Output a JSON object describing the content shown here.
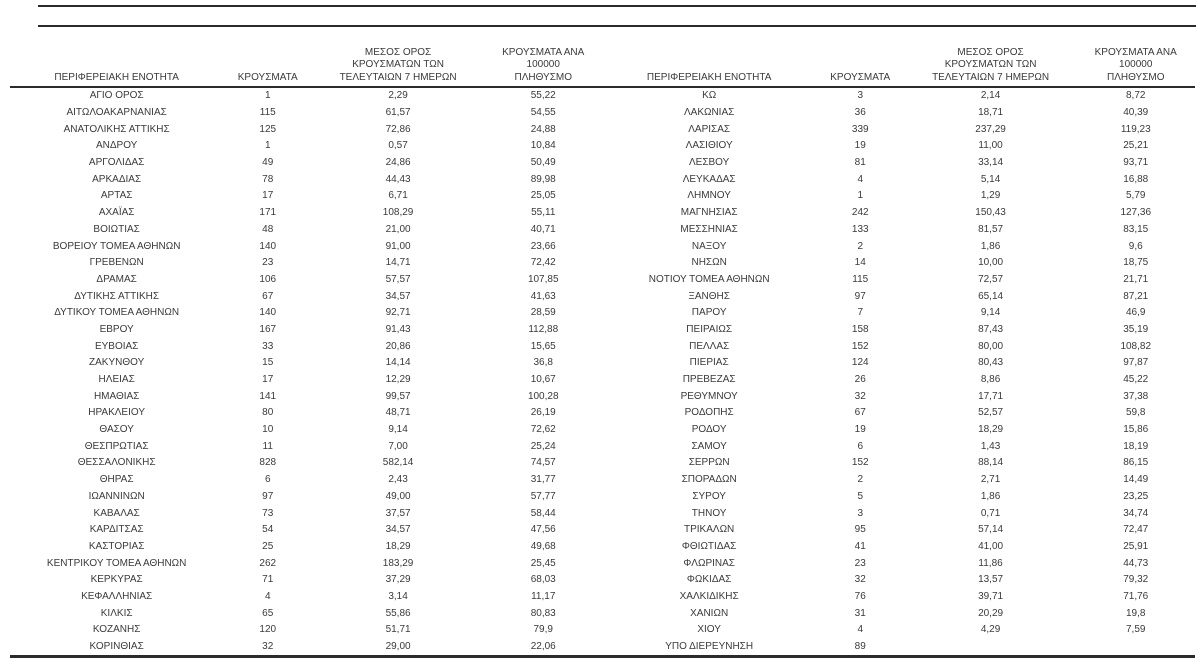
{
  "page": {
    "background_color": "#ffffff",
    "text_color": "#3a3a3a",
    "rule_color": "#2b2b2b",
    "language": "el"
  },
  "columns": {
    "region": "ΠΕΡΙΦΕΡΕΙΑΚΗ ΕΝΟΤΗΤΑ",
    "cases": "ΚΡΟΥΣΜΑΤΑ",
    "avg7": "ΜΕΣΟΣ ΟΡΟΣ\nΚΡΟΥΣΜΑΤΩΝ ΤΩΝ\nΤΕΛΕΥΤΑΙΩΝ 7 ΗΜΕΡΩΝ",
    "per100k": "ΚΡΟΥΣΜΑΤΑ ΑΝΑ 100000\nΠΛΗΘΥΣΜΟ"
  },
  "tables": [
    {
      "rows": [
        [
          "ΑΓΙΟ ΟΡΟΣ",
          "1",
          "2,29",
          "55,22"
        ],
        [
          "ΑΙΤΩΛΟΑΚΑΡΝΑΝΙΑΣ",
          "115",
          "61,57",
          "54,55"
        ],
        [
          "ΑΝΑΤΟΛΙΚΗΣ ΑΤΤΙΚΗΣ",
          "125",
          "72,86",
          "24,88"
        ],
        [
          "ΑΝΔΡΟΥ",
          "1",
          "0,57",
          "10,84"
        ],
        [
          "ΑΡΓΟΛΙΔΑΣ",
          "49",
          "24,86",
          "50,49"
        ],
        [
          "ΑΡΚΑΔΙΑΣ",
          "78",
          "44,43",
          "89,98"
        ],
        [
          "ΑΡΤΑΣ",
          "17",
          "6,71",
          "25,05"
        ],
        [
          "ΑΧΑΪΑΣ",
          "171",
          "108,29",
          "55,11"
        ],
        [
          "ΒΟΙΩΤΙΑΣ",
          "48",
          "21,00",
          "40,71"
        ],
        [
          "ΒΟΡΕΙΟΥ ΤΟΜΕΑ ΑΘΗΝΩΝ",
          "140",
          "91,00",
          "23,66"
        ],
        [
          "ΓΡΕΒΕΝΩΝ",
          "23",
          "14,71",
          "72,42"
        ],
        [
          "ΔΡΑΜΑΣ",
          "106",
          "57,57",
          "107,85"
        ],
        [
          "ΔΥΤΙΚΗΣ ΑΤΤΙΚΗΣ",
          "67",
          "34,57",
          "41,63"
        ],
        [
          "ΔΥΤΙΚΟΥ ΤΟΜΕΑ ΑΘΗΝΩΝ",
          "140",
          "92,71",
          "28,59"
        ],
        [
          "ΕΒΡΟΥ",
          "167",
          "91,43",
          "112,88"
        ],
        [
          "ΕΥΒΟΙΑΣ",
          "33",
          "20,86",
          "15,65"
        ],
        [
          "ΖΑΚΥΝΘΟΥ",
          "15",
          "14,14",
          "36,8"
        ],
        [
          "ΗΛΕΙΑΣ",
          "17",
          "12,29",
          "10,67"
        ],
        [
          "ΗΜΑΘΙΑΣ",
          "141",
          "99,57",
          "100,28"
        ],
        [
          "ΗΡΑΚΛΕΙΟΥ",
          "80",
          "48,71",
          "26,19"
        ],
        [
          "ΘΑΣΟΥ",
          "10",
          "9,14",
          "72,62"
        ],
        [
          "ΘΕΣΠΡΩΤΙΑΣ",
          "11",
          "7,00",
          "25,24"
        ],
        [
          "ΘΕΣΣΑΛΟΝΙΚΗΣ",
          "828",
          "582,14",
          "74,57"
        ],
        [
          "ΘΗΡΑΣ",
          "6",
          "2,43",
          "31,77"
        ],
        [
          "ΙΩΑΝΝΙΝΩΝ",
          "97",
          "49,00",
          "57,77"
        ],
        [
          "ΚΑΒΑΛΑΣ",
          "73",
          "37,57",
          "58,44"
        ],
        [
          "ΚΑΡΔΙΤΣΑΣ",
          "54",
          "34,57",
          "47,56"
        ],
        [
          "ΚΑΣΤΟΡΙΑΣ",
          "25",
          "18,29",
          "49,68"
        ],
        [
          "ΚΕΝΤΡΙΚΟΥ ΤΟΜΕΑ ΑΘΗΝΩΝ",
          "262",
          "183,29",
          "25,45"
        ],
        [
          "ΚΕΡΚΥΡΑΣ",
          "71",
          "37,29",
          "68,03"
        ],
        [
          "ΚΕΦΑΛΛΗΝΙΑΣ",
          "4",
          "3,14",
          "11,17"
        ],
        [
          "ΚΙΛΚΙΣ",
          "65",
          "55,86",
          "80,83"
        ],
        [
          "ΚΟΖΑΝΗΣ",
          "120",
          "51,71",
          "79,9"
        ],
        [
          "ΚΟΡΙΝΘΙΑΣ",
          "32",
          "29,00",
          "22,06"
        ]
      ]
    },
    {
      "rows": [
        [
          "ΚΩ",
          "3",
          "2,14",
          "8,72"
        ],
        [
          "ΛΑΚΩΝΙΑΣ",
          "36",
          "18,71",
          "40,39"
        ],
        [
          "ΛΑΡΙΣΑΣ",
          "339",
          "237,29",
          "119,23"
        ],
        [
          "ΛΑΣΙΘΙΟΥ",
          "19",
          "11,00",
          "25,21"
        ],
        [
          "ΛΕΣΒΟΥ",
          "81",
          "33,14",
          "93,71"
        ],
        [
          "ΛΕΥΚΑΔΑΣ",
          "4",
          "5,14",
          "16,88"
        ],
        [
          "ΛΗΜΝΟΥ",
          "1",
          "1,29",
          "5,79"
        ],
        [
          "ΜΑΓΝΗΣΙΑΣ",
          "242",
          "150,43",
          "127,36"
        ],
        [
          "ΜΕΣΣΗΝΙΑΣ",
          "133",
          "81,57",
          "83,15"
        ],
        [
          "ΝΑΞΟΥ",
          "2",
          "1,86",
          "9,6"
        ],
        [
          "ΝΗΣΩΝ",
          "14",
          "10,00",
          "18,75"
        ],
        [
          "ΝΟΤΙΟΥ ΤΟΜΕΑ ΑΘΗΝΩΝ",
          "115",
          "72,57",
          "21,71"
        ],
        [
          "ΞΑΝΘΗΣ",
          "97",
          "65,14",
          "87,21"
        ],
        [
          "ΠΑΡΟΥ",
          "7",
          "9,14",
          "46,9"
        ],
        [
          "ΠΕΙΡΑΙΩΣ",
          "158",
          "87,43",
          "35,19"
        ],
        [
          "ΠΕΛΛΑΣ",
          "152",
          "80,00",
          "108,82"
        ],
        [
          "ΠΙΕΡΙΑΣ",
          "124",
          "80,43",
          "97,87"
        ],
        [
          "ΠΡΕΒΕΖΑΣ",
          "26",
          "8,86",
          "45,22"
        ],
        [
          "ΡΕΘΥΜΝΟΥ",
          "32",
          "17,71",
          "37,38"
        ],
        [
          "ΡΟΔΟΠΗΣ",
          "67",
          "52,57",
          "59,8"
        ],
        [
          "ΡΟΔΟΥ",
          "19",
          "18,29",
          "15,86"
        ],
        [
          "ΣΑΜΟΥ",
          "6",
          "1,43",
          "18,19"
        ],
        [
          "ΣΕΡΡΩΝ",
          "152",
          "88,14",
          "86,15"
        ],
        [
          "ΣΠΟΡΑΔΩΝ",
          "2",
          "2,71",
          "14,49"
        ],
        [
          "ΣΥΡΟΥ",
          "5",
          "1,86",
          "23,25"
        ],
        [
          "ΤΗΝΟΥ",
          "3",
          "0,71",
          "34,74"
        ],
        [
          "ΤΡΙΚΑΛΩΝ",
          "95",
          "57,14",
          "72,47"
        ],
        [
          "ΦΘΙΩΤΙΔΑΣ",
          "41",
          "41,00",
          "25,91"
        ],
        [
          "ΦΛΩΡΙΝΑΣ",
          "23",
          "11,86",
          "44,73"
        ],
        [
          "ΦΩΚΙΔΑΣ",
          "32",
          "13,57",
          "79,32"
        ],
        [
          "ΧΑΛΚΙΔΙΚΗΣ",
          "76",
          "39,71",
          "71,76"
        ],
        [
          "ΧΑΝΙΩΝ",
          "31",
          "20,29",
          "19,8"
        ],
        [
          "ΧΙΟΥ",
          "4",
          "4,29",
          "7,59"
        ],
        [
          "ΥΠΟ ΔΙΕΡΕΥΝΗΣΗ",
          "89",
          "",
          ""
        ]
      ]
    }
  ]
}
